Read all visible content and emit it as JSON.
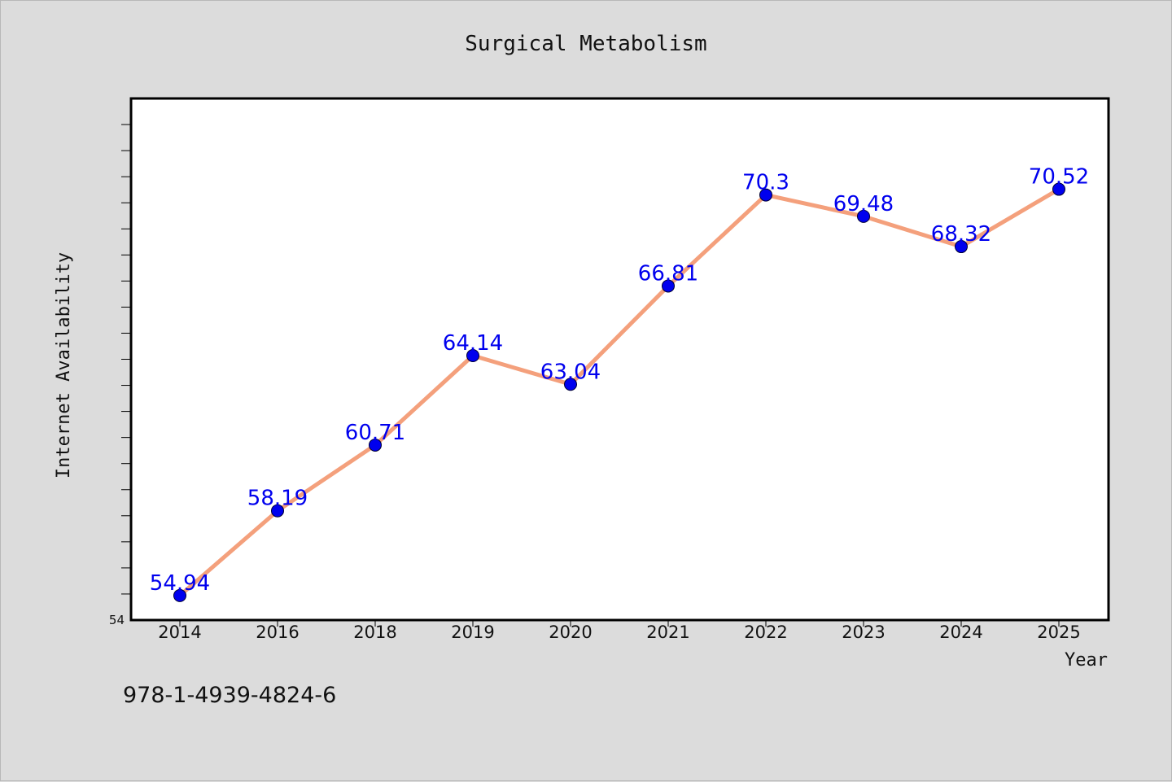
{
  "footer": {
    "text": "978-1-4939-4824-6"
  },
  "colors": {
    "line": "#f4a07c",
    "marker": "#0000ee",
    "label": "#0000ee",
    "background": "#dcdcdc",
    "plot_bg": "#ffffff"
  },
  "chart_data": {
    "type": "line",
    "title": "Surgical Metabolism",
    "xlabel": "Year",
    "ylabel": "Internet Availability",
    "categories": [
      "2014",
      "2016",
      "2018",
      "2019",
      "2020",
      "2021",
      "2022",
      "2023",
      "2024",
      "2025"
    ],
    "series": [
      {
        "values": [
          54.94,
          58.19,
          60.71,
          64.14,
          63.04,
          66.81,
          70.3,
          69.48,
          68.32,
          70.52
        ]
      }
    ],
    "data_labels": [
      "54.94",
      "58.19",
      "60.71",
      "64.14",
      "63.04",
      "66.81",
      "70.3",
      "69.48",
      "68.32",
      "70.52"
    ],
    "ylim": [
      54,
      74
    ],
    "yticks_labeled": [
      "54"
    ],
    "grid": false,
    "legend": "none"
  }
}
